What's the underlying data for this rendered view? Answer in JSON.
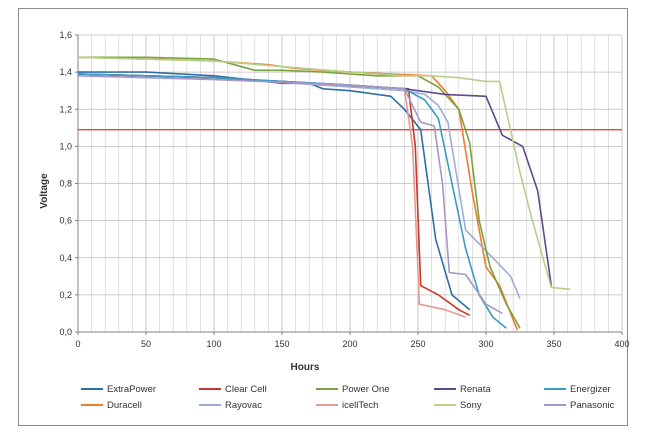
{
  "chart_data": {
    "type": "line",
    "title": "",
    "xlabel": "Hours",
    "ylabel": "Voltage",
    "xlim": [
      0,
      400
    ],
    "ylim": [
      0,
      1.6
    ],
    "x_ticks": [
      "0",
      "50",
      "100",
      "150",
      "200",
      "250",
      "300",
      "350",
      "400"
    ],
    "x_tick_values": [
      0,
      50,
      100,
      150,
      200,
      250,
      300,
      350,
      400
    ],
    "y_ticks": [
      "0,0",
      "0,2",
      "0,4",
      "0,6",
      "0,8",
      "1,0",
      "1,2",
      "1,4",
      "1,6"
    ],
    "y_tick_values": [
      0,
      0.2,
      0.4,
      0.6,
      0.8,
      1.0,
      1.2,
      1.4,
      1.6
    ],
    "minor_x_gridlines_every": 10,
    "grid": true,
    "legend_position": "bottom",
    "reference_line": {
      "y": 1.09,
      "color": "#e8453c"
    },
    "series": [
      {
        "name": "ExtraPower",
        "color": "#2e6ea6",
        "points": [
          [
            0,
            1.4
          ],
          [
            50,
            1.4
          ],
          [
            100,
            1.38
          ],
          [
            150,
            1.34
          ],
          [
            170,
            1.34
          ],
          [
            180,
            1.31
          ],
          [
            200,
            1.3
          ],
          [
            220,
            1.28
          ],
          [
            230,
            1.27
          ],
          [
            240,
            1.2
          ],
          [
            252,
            1.09
          ],
          [
            263,
            0.5
          ],
          [
            275,
            0.2
          ],
          [
            288,
            0.12
          ]
        ]
      },
      {
        "name": "Duracell",
        "color": "#ed7d31",
        "points": [
          [
            0,
            1.48
          ],
          [
            50,
            1.47
          ],
          [
            100,
            1.46
          ],
          [
            140,
            1.44
          ],
          [
            160,
            1.42
          ],
          [
            200,
            1.4
          ],
          [
            230,
            1.39
          ],
          [
            260,
            1.38
          ],
          [
            270,
            1.3
          ],
          [
            280,
            1.2
          ],
          [
            290,
            0.75
          ],
          [
            300,
            0.35
          ],
          [
            310,
            0.25
          ],
          [
            323,
            0.01
          ]
        ]
      },
      {
        "name": "Clear Cell",
        "color": "#c0392b",
        "points": [
          [
            0,
            1.39
          ],
          [
            100,
            1.37
          ],
          [
            180,
            1.33
          ],
          [
            220,
            1.32
          ],
          [
            243,
            1.31
          ],
          [
            248,
            1.0
          ],
          [
            252,
            0.25
          ],
          [
            265,
            0.2
          ],
          [
            280,
            0.12
          ],
          [
            288,
            0.09
          ]
        ]
      },
      {
        "name": "Rayovac",
        "color": "#9aaed6",
        "points": [
          [
            0,
            1.39
          ],
          [
            100,
            1.37
          ],
          [
            180,
            1.33
          ],
          [
            220,
            1.31
          ],
          [
            240,
            1.3
          ],
          [
            255,
            1.28
          ],
          [
            265,
            1.22
          ],
          [
            272,
            1.13
          ],
          [
            285,
            0.55
          ],
          [
            305,
            0.4
          ],
          [
            318,
            0.3
          ],
          [
            325,
            0.18
          ]
        ]
      },
      {
        "name": "Power One",
        "color": "#7aa33d",
        "points": [
          [
            0,
            1.48
          ],
          [
            50,
            1.48
          ],
          [
            100,
            1.47
          ],
          [
            110,
            1.45
          ],
          [
            130,
            1.41
          ],
          [
            150,
            1.41
          ],
          [
            180,
            1.4
          ],
          [
            200,
            1.39
          ],
          [
            220,
            1.38
          ],
          [
            250,
            1.38
          ],
          [
            265,
            1.32
          ],
          [
            280,
            1.2
          ],
          [
            288,
            1.02
          ],
          [
            295,
            0.6
          ],
          [
            303,
            0.35
          ],
          [
            315,
            0.15
          ],
          [
            325,
            0.02
          ]
        ]
      },
      {
        "name": "icellTech",
        "color": "#e39a93",
        "points": [
          [
            0,
            1.39
          ],
          [
            100,
            1.37
          ],
          [
            200,
            1.33
          ],
          [
            240,
            1.31
          ],
          [
            246,
            1.0
          ],
          [
            251,
            0.15
          ],
          [
            270,
            0.12
          ],
          [
            285,
            0.08
          ]
        ]
      },
      {
        "name": "Renata",
        "color": "#5c4a8a",
        "points": [
          [
            0,
            1.39
          ],
          [
            100,
            1.37
          ],
          [
            200,
            1.33
          ],
          [
            240,
            1.31
          ],
          [
            250,
            1.3
          ],
          [
            270,
            1.28
          ],
          [
            300,
            1.27
          ],
          [
            312,
            1.06
          ],
          [
            327,
            1.0
          ],
          [
            338,
            0.76
          ],
          [
            348,
            0.25
          ]
        ]
      },
      {
        "name": "Sony",
        "color": "#b6d08a",
        "points": [
          [
            0,
            1.48
          ],
          [
            100,
            1.46
          ],
          [
            200,
            1.4
          ],
          [
            240,
            1.38
          ],
          [
            260,
            1.38
          ],
          [
            280,
            1.37
          ],
          [
            300,
            1.35
          ],
          [
            310,
            1.35
          ],
          [
            325,
            0.86
          ],
          [
            333,
            0.63
          ],
          [
            348,
            0.24
          ],
          [
            362,
            0.23
          ]
        ]
      },
      {
        "name": "Energizer",
        "color": "#3a9bc4",
        "points": [
          [
            0,
            1.39
          ],
          [
            100,
            1.37
          ],
          [
            200,
            1.33
          ],
          [
            240,
            1.31
          ],
          [
            255,
            1.25
          ],
          [
            265,
            1.15
          ],
          [
            275,
            0.8
          ],
          [
            285,
            0.45
          ],
          [
            295,
            0.2
          ],
          [
            305,
            0.08
          ],
          [
            315,
            0.02
          ]
        ]
      },
      {
        "name": "Panasonic",
        "color": "#a896c4",
        "points": [
          [
            0,
            1.38
          ],
          [
            100,
            1.36
          ],
          [
            200,
            1.33
          ],
          [
            240,
            1.31
          ],
          [
            252,
            1.13
          ],
          [
            262,
            1.11
          ],
          [
            268,
            0.8
          ],
          [
            273,
            0.32
          ],
          [
            285,
            0.31
          ],
          [
            300,
            0.15
          ],
          [
            312,
            0.1
          ]
        ]
      }
    ]
  }
}
